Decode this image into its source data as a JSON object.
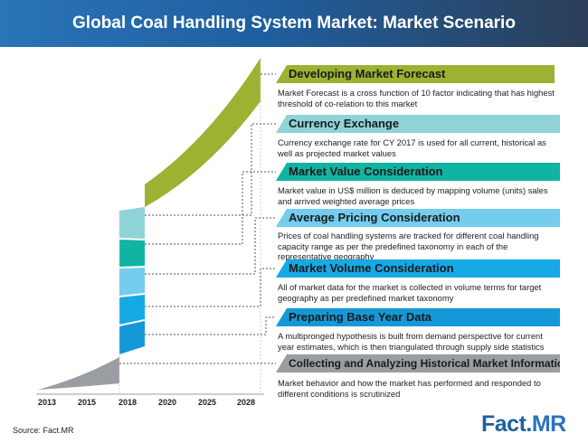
{
  "header": {
    "title": "Global Coal Handling System Market: Market Scenario"
  },
  "colors": {
    "green": "#9cb232",
    "teal_light": "#8fd3d6",
    "teal": "#11b3a2",
    "sky": "#74cdee",
    "blue": "#15a9e6",
    "blue2": "#1598d8",
    "grey": "#9a9da2"
  },
  "steps": [
    {
      "title": "Developing Market Forecast",
      "description": "Market Forecast is a cross function of 10 factor indicating that has highest threshold of co-relation to this market",
      "color": "#9cb232"
    },
    {
      "title": "Currency Exchange",
      "description": "Currency exchange rate for CY 2017 is used for all current, historical as well as projected market values",
      "color": "#8fd3d6"
    },
    {
      "title": "Market Value Consideration",
      "description": "Market value in US$ million is deduced by mapping volume (units) sales and arrived weighted average prices",
      "color": "#11b3a2"
    },
    {
      "title": "Average Pricing Consideration",
      "description": "Prices of coal handling systems are tracked for different coal handling capacity range as per the predefined taxonomy in each of the representative geography",
      "color": "#74cdee"
    },
    {
      "title": "Market Volume Consideration",
      "description": "All of market data for the market is collected in volume terms for target geography as per predefined market taxonomy",
      "color": "#15a9e6"
    },
    {
      "title": "Preparing Base Year Data",
      "description": "A multipronged hypothesis is built from demand perspective for current year estimates, which is then triangulated through supply side statistics",
      "color": "#1598d8"
    },
    {
      "title": "Collecting and Analyzing Historical Market Information",
      "description": "Market behavior and how the market has performed and responded to different conditions is scrutinized",
      "color": "#9a9da2"
    }
  ],
  "years": [
    "2013",
    "2015",
    "2018",
    "2020",
    "2025",
    "2028"
  ],
  "source": "Source: Fact.MR",
  "logo": {
    "part1": "Fact.",
    "part2": "MR"
  }
}
